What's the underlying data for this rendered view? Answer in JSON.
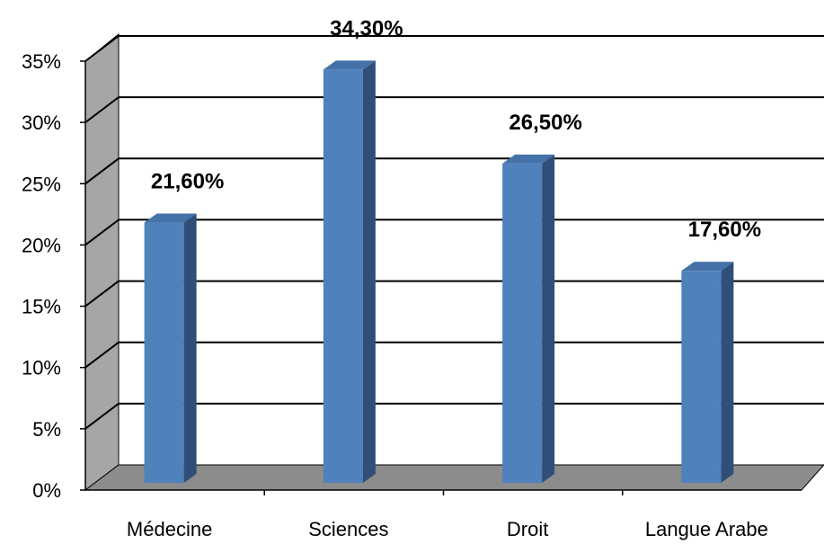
{
  "chart_data": {
    "type": "bar",
    "title": "",
    "xlabel": "",
    "ylabel": "",
    "categories": [
      "Médecine",
      "Sciences",
      "Droit",
      "Langue Arabe"
    ],
    "values": [
      21.6,
      34.3,
      26.5,
      17.6
    ],
    "value_labels": [
      "21,60%",
      "34,30%",
      "26,50%",
      "17,60%"
    ],
    "ylim": [
      0,
      35
    ],
    "yticks": [
      0,
      5,
      10,
      15,
      20,
      25,
      30,
      35
    ],
    "ytick_labels": [
      "0%",
      "5%",
      "10%",
      "15%",
      "20%",
      "25%",
      "30%",
      "35%"
    ],
    "grid": true,
    "legend": "none",
    "style": "3d-column",
    "colors": {
      "bar_front": "#4f81bd",
      "bar_side": "#2f4f78",
      "bar_top": "#4472a8",
      "walls": "#a6a6a6",
      "gridline": "#000000"
    }
  }
}
